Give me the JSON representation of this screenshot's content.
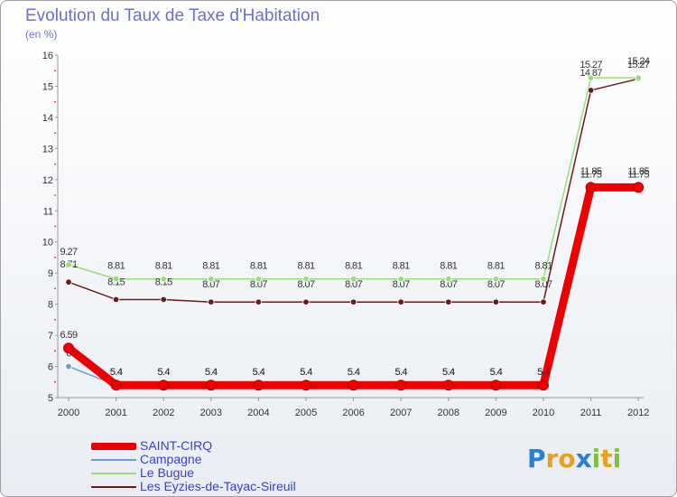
{
  "chart_data": {
    "type": "line",
    "title": "Evolution du Taux de Taxe d'Habitation",
    "subtitle": "(en %)",
    "categories": [
      "2000",
      "2001",
      "2002",
      "2003",
      "2004",
      "2005",
      "2006",
      "2007",
      "2008",
      "2009",
      "2010",
      "2011",
      "2012"
    ],
    "ylim": [
      5,
      16
    ],
    "yticks": [
      "5",
      "6",
      "7",
      "8",
      "9",
      "10",
      "11",
      "12",
      "13",
      "14",
      "15",
      "16"
    ],
    "series": [
      {
        "name": "Les Eyzies-de-Tayac-Sireuil",
        "color": "#6b1a1a",
        "values": [
          8.71,
          8.15,
          8.15,
          8.07,
          8.07,
          8.07,
          8.07,
          8.07,
          8.07,
          8.07,
          8.07,
          14.87,
          15.24
        ],
        "labels": [
          "8.71",
          "8.15",
          "8.15",
          "8.07",
          "8.07",
          "8.07",
          "8.07",
          "8.07",
          "8.07",
          "8.07",
          "8.07",
          "14.87",
          "15.24"
        ]
      },
      {
        "name": "Le Bugue",
        "color": "#99dd77",
        "values": [
          9.27,
          8.81,
          8.81,
          8.81,
          8.81,
          8.81,
          8.81,
          8.81,
          8.81,
          8.81,
          8.81,
          15.27,
          15.27
        ],
        "labels": [
          "9.27",
          "8.81",
          "8.81",
          "8.81",
          "8.81",
          "8.81",
          "8.81",
          "8.81",
          "8.81",
          "8.81",
          "8.81",
          "15.27",
          "15.27"
        ]
      },
      {
        "name": "Campagne",
        "color": "#6b9ec8",
        "values": [
          6,
          5.4,
          5.4,
          5.4,
          5.4,
          5.4,
          5.4,
          5.4,
          5.4,
          5.4,
          5.4,
          11.85,
          11.85
        ],
        "labels": [
          "6",
          "5.4",
          "5.4",
          "5.4",
          "5.4",
          "5.4",
          "5.4",
          "5.4",
          "5.4",
          "5.4",
          "5.4",
          "11.85",
          "11.85"
        ]
      },
      {
        "name": "SAINT-CIRQ",
        "color": "#ee0000",
        "values": [
          6.59,
          5.4,
          5.4,
          5.4,
          5.4,
          5.4,
          5.4,
          5.4,
          5.4,
          5.4,
          5.4,
          11.75,
          11.75
        ],
        "labels": [
          "6.59",
          "5.4",
          "5.4",
          "5.4",
          "5.4",
          "5.4",
          "5.4",
          "5.4",
          "5.4",
          "5.4",
          "5.4",
          "11.75",
          "11.75"
        ]
      }
    ],
    "legend": [
      "SAINT-CIRQ",
      "Campagne",
      "Le Bugue",
      "Les Eyzies-de-Tayac-Sireuil"
    ],
    "legend_position": "bottom-left"
  },
  "logo": {
    "text": "Proxiti",
    "letters": [
      "P",
      "r",
      "o",
      "x",
      "i",
      "t",
      "i"
    ],
    "colors": [
      "#2a7fd4",
      "#e8a020",
      "#e8a020",
      "#2a7fd4",
      "#80c040",
      "#e8a020",
      "#80c040"
    ]
  }
}
